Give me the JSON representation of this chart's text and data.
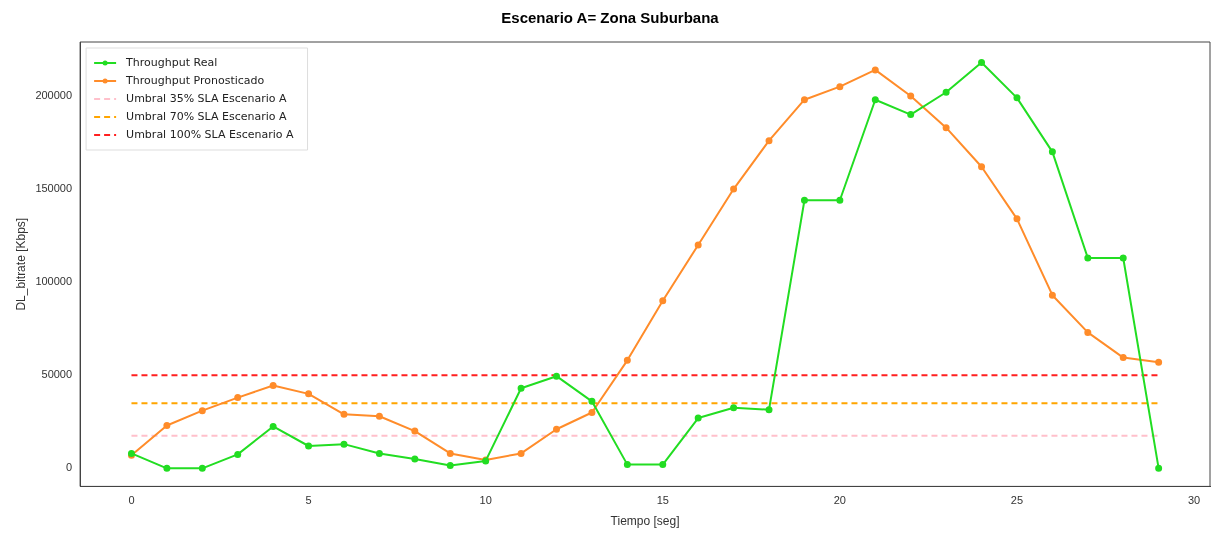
{
  "chart_data": {
    "type": "line",
    "title": "Escenario A= Zona Suburbana",
    "xlabel": "Tiempo [seg]",
    "ylabel": "DL_bitrate [Kbps]",
    "x": [
      0,
      1,
      2,
      3,
      4,
      5,
      6,
      7,
      8,
      9,
      10,
      11,
      12,
      13,
      14,
      15,
      16,
      17,
      18,
      19,
      20,
      21,
      22,
      23,
      24,
      25,
      26,
      27,
      28,
      29
    ],
    "xlim": [
      -1.45,
      30.45
    ],
    "xticks": [
      0,
      5,
      10,
      15,
      20,
      25,
      30
    ],
    "ylim": [
      -9700,
      229000
    ],
    "yticks": [
      0,
      50000,
      100000,
      150000,
      200000
    ],
    "grid": false,
    "legend": "top left",
    "series": [
      {
        "name": "Throughput Real",
        "color": "#22dd22",
        "marker": "circle",
        "line_style": "solid",
        "values": [
          8000,
          0,
          0,
          7500,
          22500,
          12000,
          13000,
          8000,
          5000,
          1500,
          4000,
          43000,
          49500,
          36000,
          2000,
          2000,
          27000,
          32500,
          31500,
          144000,
          144000,
          198000,
          190000,
          202000,
          218000,
          199000,
          170000,
          113000,
          113000,
          0
        ]
      },
      {
        "name": "Throughput Pronosticado",
        "color": "#ff8c2a",
        "marker": "circle",
        "line_style": "solid",
        "values": [
          7000,
          23000,
          31000,
          38000,
          44500,
          40000,
          29000,
          28000,
          20000,
          8000,
          4500,
          8000,
          21000,
          30000,
          58000,
          90000,
          120000,
          150000,
          176000,
          198000,
          205000,
          214000,
          200000,
          183000,
          162000,
          134000,
          93000,
          73000,
          59500,
          57000
        ]
      },
      {
        "name": "Umbral 35% SLA Escenario A",
        "color": "#ffc0cb",
        "marker": "none",
        "line_style": "dashed",
        "values": [
          17500,
          17500,
          17500,
          17500,
          17500,
          17500,
          17500,
          17500,
          17500,
          17500,
          17500,
          17500,
          17500,
          17500,
          17500,
          17500,
          17500,
          17500,
          17500,
          17500,
          17500,
          17500,
          17500,
          17500,
          17500,
          17500,
          17500,
          17500,
          17500,
          17500
        ]
      },
      {
        "name": "Umbral 70% SLA Escenario A",
        "color": "#ffa500",
        "marker": "none",
        "line_style": "dashed",
        "values": [
          35000,
          35000,
          35000,
          35000,
          35000,
          35000,
          35000,
          35000,
          35000,
          35000,
          35000,
          35000,
          35000,
          35000,
          35000,
          35000,
          35000,
          35000,
          35000,
          35000,
          35000,
          35000,
          35000,
          35000,
          35000,
          35000,
          35000,
          35000,
          35000,
          35000
        ]
      },
      {
        "name": "Umbral 100% SLA Escenario A",
        "color": "#ff2020",
        "marker": "none",
        "line_style": "dashed",
        "values": [
          50000,
          50000,
          50000,
          50000,
          50000,
          50000,
          50000,
          50000,
          50000,
          50000,
          50000,
          50000,
          50000,
          50000,
          50000,
          50000,
          50000,
          50000,
          50000,
          50000,
          50000,
          50000,
          50000,
          50000,
          50000,
          50000,
          50000,
          50000,
          50000,
          50000
        ]
      }
    ]
  }
}
